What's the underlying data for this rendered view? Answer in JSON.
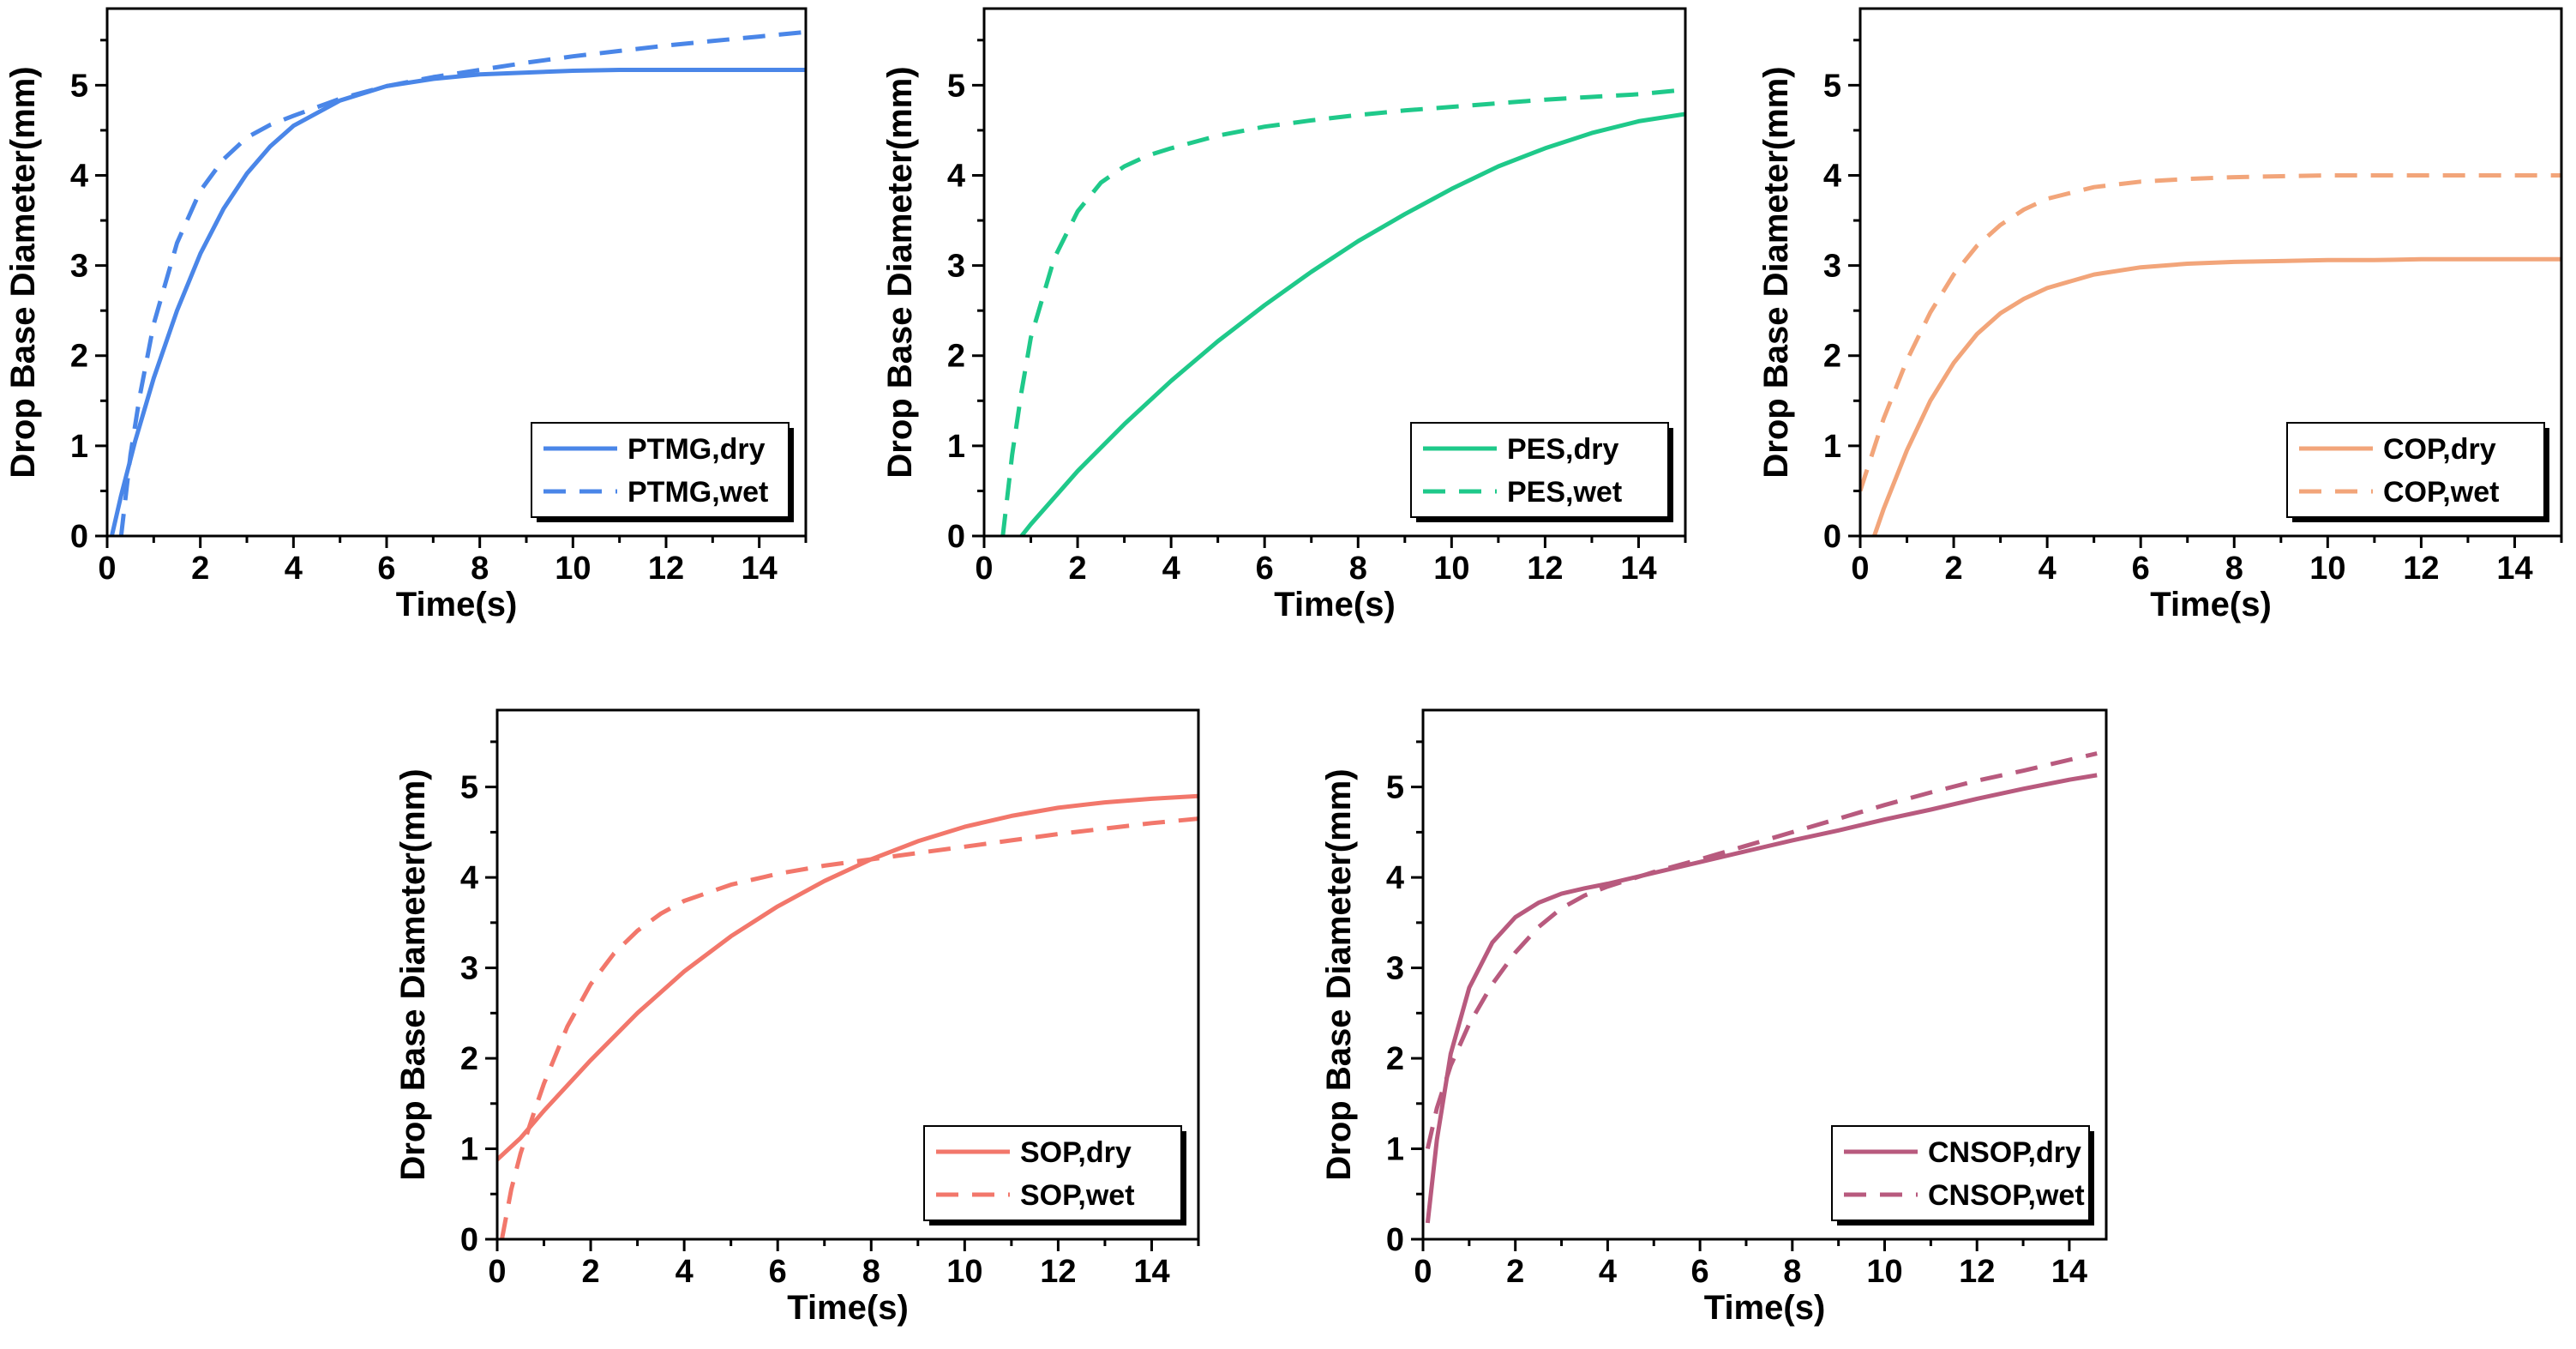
{
  "chart_data": [
    {
      "type": "line",
      "xlabel": "Time(s)",
      "ylabel": "Drop Base Diameter(mm)",
      "xlim": [
        0,
        15
      ],
      "ylim": [
        0,
        5.85
      ],
      "xticks": [
        0,
        2,
        4,
        6,
        8,
        10,
        12,
        14
      ],
      "yticks": [
        0,
        1,
        2,
        3,
        4,
        5
      ],
      "legend_position": "bottom-right",
      "series": [
        {
          "name": "PTMG,dry",
          "style": "solid",
          "color": "#4a86e8",
          "x": [
            0.1,
            0.3,
            0.6,
            1,
            1.5,
            2,
            2.5,
            3,
            3.5,
            4,
            5,
            6,
            7,
            8,
            9,
            10,
            11,
            12,
            13,
            14,
            15
          ],
          "y": [
            0,
            0.45,
            1.05,
            1.75,
            2.5,
            3.13,
            3.63,
            4.02,
            4.32,
            4.55,
            4.83,
            4.99,
            5.07,
            5.12,
            5.14,
            5.16,
            5.17,
            5.17,
            5.17,
            5.17,
            5.17
          ]
        },
        {
          "name": "PTMG,wet",
          "style": "dashed",
          "color": "#4a86e8",
          "x": [
            0.3,
            0.5,
            0.7,
            1,
            1.5,
            2,
            2.5,
            3,
            3.5,
            4,
            5,
            6,
            7,
            8,
            9,
            10,
            11,
            12,
            13,
            14,
            15
          ],
          "y": [
            0,
            0.9,
            1.55,
            2.35,
            3.25,
            3.83,
            4.18,
            4.42,
            4.56,
            4.66,
            4.85,
            4.99,
            5.09,
            5.17,
            5.25,
            5.32,
            5.38,
            5.44,
            5.49,
            5.54,
            5.59
          ]
        }
      ]
    },
    {
      "type": "line",
      "xlabel": "Time(s)",
      "ylabel": "Drop Base Diameter(mm)",
      "xlim": [
        0,
        15
      ],
      "ylim": [
        0,
        5.85
      ],
      "xticks": [
        0,
        2,
        4,
        6,
        8,
        10,
        12,
        14
      ],
      "yticks": [
        0,
        1,
        2,
        3,
        4,
        5
      ],
      "legend_position": "bottom-right",
      "series": [
        {
          "name": "PES,dry",
          "style": "solid",
          "color": "#1fc98a",
          "x": [
            0.8,
            1,
            2,
            3,
            4,
            5,
            6,
            7,
            8,
            9,
            10,
            11,
            12,
            13,
            14,
            15
          ],
          "y": [
            0,
            0.13,
            0.72,
            1.24,
            1.72,
            2.16,
            2.56,
            2.93,
            3.27,
            3.57,
            3.85,
            4.1,
            4.3,
            4.47,
            4.6,
            4.68
          ]
        },
        {
          "name": "PES,wet",
          "style": "dashed",
          "color": "#1fc98a",
          "x": [
            0.4,
            0.6,
            0.8,
            1,
            1.5,
            2,
            2.5,
            3,
            3.5,
            4,
            5,
            6,
            7,
            8,
            9,
            10,
            11,
            12,
            13,
            14,
            15
          ],
          "y": [
            0,
            0.9,
            1.6,
            2.2,
            3.08,
            3.6,
            3.92,
            4.1,
            4.22,
            4.3,
            4.44,
            4.54,
            4.61,
            4.67,
            4.72,
            4.76,
            4.8,
            4.84,
            4.87,
            4.9,
            4.95
          ]
        }
      ]
    },
    {
      "type": "line",
      "xlabel": "Time(s)",
      "ylabel": "Drop Base Diameter(mm)",
      "xlim": [
        0,
        15
      ],
      "ylim": [
        0,
        5.85
      ],
      "xticks": [
        0,
        2,
        4,
        6,
        8,
        10,
        12,
        14
      ],
      "yticks": [
        0,
        1,
        2,
        3,
        4,
        5
      ],
      "legend_position": "bottom-right",
      "series": [
        {
          "name": "COP,dry",
          "style": "solid",
          "color": "#f2a57a",
          "x": [
            0.3,
            0.5,
            1,
            1.5,
            2,
            2.5,
            3,
            3.5,
            4,
            5,
            6,
            7,
            8,
            9,
            10,
            11,
            12,
            13,
            14,
            15
          ],
          "y": [
            0,
            0.3,
            0.95,
            1.5,
            1.92,
            2.24,
            2.47,
            2.63,
            2.75,
            2.9,
            2.98,
            3.02,
            3.04,
            3.05,
            3.06,
            3.06,
            3.07,
            3.07,
            3.07,
            3.07
          ]
        },
        {
          "name": "COP,wet",
          "style": "dashed",
          "color": "#f2a57a",
          "x": [
            0,
            0.5,
            1,
            1.5,
            2,
            2.5,
            3,
            3.5,
            4,
            5,
            6,
            7,
            8,
            9,
            10,
            11,
            12,
            13,
            14,
            15
          ],
          "y": [
            0.5,
            1.3,
            1.95,
            2.48,
            2.9,
            3.22,
            3.45,
            3.62,
            3.74,
            3.87,
            3.93,
            3.96,
            3.98,
            3.99,
            4,
            4,
            4,
            4,
            4,
            4
          ]
        }
      ]
    },
    {
      "type": "line",
      "xlabel": "Time(s)",
      "ylabel": "Drop Base Diameter(mm)",
      "xlim": [
        0,
        15
      ],
      "ylim": [
        0,
        5.85
      ],
      "xticks": [
        0,
        2,
        4,
        6,
        8,
        10,
        12,
        14
      ],
      "yticks": [
        0,
        1,
        2,
        3,
        4,
        5
      ],
      "legend_position": "bottom-right",
      "series": [
        {
          "name": "SOP,dry",
          "style": "solid",
          "color": "#f2776b",
          "x": [
            0,
            0.5,
            1,
            2,
            3,
            4,
            5,
            6,
            7,
            8,
            9,
            10,
            11,
            12,
            13,
            14,
            15
          ],
          "y": [
            0.88,
            1.12,
            1.42,
            1.98,
            2.5,
            2.96,
            3.35,
            3.68,
            3.96,
            4.2,
            4.4,
            4.56,
            4.68,
            4.77,
            4.83,
            4.87,
            4.9
          ]
        },
        {
          "name": "SOP,wet",
          "style": "dashed",
          "color": "#f2776b",
          "x": [
            0.1,
            0.3,
            0.5,
            0.8,
            1,
            1.5,
            2,
            2.5,
            3,
            3.5,
            4,
            5,
            6,
            7,
            8,
            9,
            10,
            11,
            12,
            13,
            14,
            15
          ],
          "y": [
            0,
            0.55,
            0.95,
            1.42,
            1.72,
            2.35,
            2.82,
            3.16,
            3.41,
            3.6,
            3.74,
            3.92,
            4.04,
            4.13,
            4.2,
            4.27,
            4.34,
            4.41,
            4.48,
            4.54,
            4.6,
            4.65
          ]
        }
      ]
    },
    {
      "type": "line",
      "xlabel": "Time(s)",
      "ylabel": "Drop Base Diameter(mm)",
      "xlim": [
        0,
        14.8
      ],
      "ylim": [
        0,
        5.85
      ],
      "xticks": [
        0,
        2,
        4,
        6,
        8,
        10,
        12,
        14
      ],
      "yticks": [
        0,
        1,
        2,
        3,
        4,
        5
      ],
      "legend_position": "bottom-right",
      "series": [
        {
          "name": "CNSOP,dry",
          "style": "solid",
          "color": "#b85a7e",
          "x": [
            0.1,
            0.3,
            0.6,
            1,
            1.5,
            2,
            2.5,
            3,
            3.5,
            4,
            5,
            6,
            7,
            8,
            9,
            10,
            11,
            12,
            13,
            14,
            14.6
          ],
          "y": [
            0.18,
            1.1,
            2.05,
            2.78,
            3.28,
            3.56,
            3.72,
            3.82,
            3.88,
            3.93,
            4.05,
            4.17,
            4.29,
            4.41,
            4.52,
            4.64,
            4.75,
            4.87,
            4.98,
            5.08,
            5.13
          ]
        },
        {
          "name": "CNSOP,wet",
          "style": "dashed",
          "color": "#b85a7e",
          "x": [
            0.1,
            0.3,
            0.6,
            1,
            1.5,
            2,
            2.5,
            3,
            3.5,
            4,
            5,
            6,
            7,
            8,
            9,
            10,
            11,
            12,
            13,
            14,
            14.6
          ],
          "y": [
            1.0,
            1.45,
            1.92,
            2.38,
            2.82,
            3.17,
            3.45,
            3.66,
            3.8,
            3.9,
            4.06,
            4.2,
            4.35,
            4.5,
            4.65,
            4.8,
            4.94,
            5.07,
            5.18,
            5.3,
            5.37
          ]
        }
      ]
    }
  ]
}
